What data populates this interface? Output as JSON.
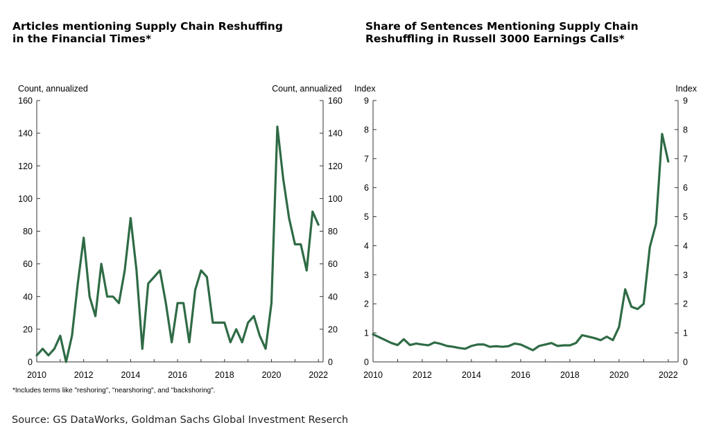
{
  "footnote": "*Includes terms like \"reshoring\", \"nearshoring\", and \"backshoring\".",
  "source": "Source: GS DataWorks, Goldman Sachs Global Investment Reserch",
  "chart_data": [
    {
      "type": "line",
      "title": "Articles mentioning Supply Chain Reshuffing\nin the Financial Times*",
      "ylabel_left": "Count, annualized",
      "ylabel_right": "Count, annualized",
      "xlim": [
        2010,
        2022.2
      ],
      "ylim": [
        0,
        160
      ],
      "yticks": [
        0,
        20,
        40,
        60,
        80,
        100,
        120,
        140,
        160
      ],
      "xticks": [
        2010,
        2012,
        2014,
        2016,
        2018,
        2020,
        2022
      ],
      "line_color": "#2f6b45",
      "series": [
        {
          "x": [
            2010.0,
            2010.25,
            2010.5,
            2010.75,
            2011.0,
            2011.25,
            2011.5,
            2011.75,
            2012.0,
            2012.25,
            2012.5,
            2012.75,
            2013.0,
            2013.25,
            2013.5,
            2013.75,
            2014.0,
            2014.25,
            2014.5,
            2014.75,
            2015.0,
            2015.25,
            2015.5,
            2015.75,
            2016.0,
            2016.25,
            2016.5,
            2016.75,
            2017.0,
            2017.25,
            2017.5,
            2017.75,
            2018.0,
            2018.25,
            2018.5,
            2018.75,
            2019.0,
            2019.25,
            2019.5,
            2019.75,
            2020.0,
            2020.25,
            2020.5,
            2020.75,
            2021.0,
            2021.25,
            2021.5,
            2021.75,
            2022.0
          ],
          "values": [
            4,
            8,
            4,
            8,
            16,
            0,
            16,
            48,
            76,
            40,
            28,
            60,
            40,
            40,
            36,
            56,
            88,
            56,
            8,
            48,
            52,
            56,
            36,
            12,
            36,
            36,
            12,
            44,
            56,
            52,
            24,
            24,
            24,
            12,
            20,
            12,
            24,
            28,
            16,
            8,
            36,
            144,
            112,
            88,
            72,
            72,
            56,
            92,
            84
          ]
        }
      ]
    },
    {
      "type": "line",
      "title": "Share of Sentences Mentioning Supply Chain\nReshuffling in Russell 3000 Earnings Calls*",
      "ylabel_left": "Index",
      "ylabel_right": "Index",
      "xlim": [
        2010,
        2022.4
      ],
      "ylim": [
        0,
        9
      ],
      "yticks": [
        0,
        1,
        2,
        3,
        4,
        5,
        6,
        7,
        8,
        9
      ],
      "xticks": [
        2010,
        2012,
        2014,
        2016,
        2018,
        2020,
        2022
      ],
      "line_color": "#2f6b45",
      "series": [
        {
          "x": [
            2010.0,
            2010.25,
            2010.5,
            2010.75,
            2011.0,
            2011.25,
            2011.5,
            2011.75,
            2012.0,
            2012.25,
            2012.5,
            2012.75,
            2013.0,
            2013.25,
            2013.5,
            2013.75,
            2014.0,
            2014.25,
            2014.5,
            2014.75,
            2015.0,
            2015.25,
            2015.5,
            2015.75,
            2016.0,
            2016.25,
            2016.5,
            2016.75,
            2017.0,
            2017.25,
            2017.5,
            2017.75,
            2018.0,
            2018.25,
            2018.5,
            2018.75,
            2019.0,
            2019.25,
            2019.5,
            2019.75,
            2020.0,
            2020.25,
            2020.5,
            2020.75,
            2021.0,
            2021.25,
            2021.5,
            2021.75,
            2022.0
          ],
          "values": [
            0.95,
            0.85,
            0.75,
            0.65,
            0.58,
            0.78,
            0.58,
            0.63,
            0.6,
            0.57,
            0.67,
            0.62,
            0.55,
            0.52,
            0.48,
            0.45,
            0.55,
            0.6,
            0.6,
            0.52,
            0.54,
            0.52,
            0.54,
            0.63,
            0.6,
            0.5,
            0.4,
            0.55,
            0.6,
            0.65,
            0.55,
            0.57,
            0.57,
            0.65,
            0.92,
            0.87,
            0.82,
            0.75,
            0.87,
            0.75,
            1.2,
            2.5,
            1.9,
            1.82,
            2.0,
            3.95,
            4.75,
            7.85,
            6.9
          ]
        }
      ]
    }
  ]
}
